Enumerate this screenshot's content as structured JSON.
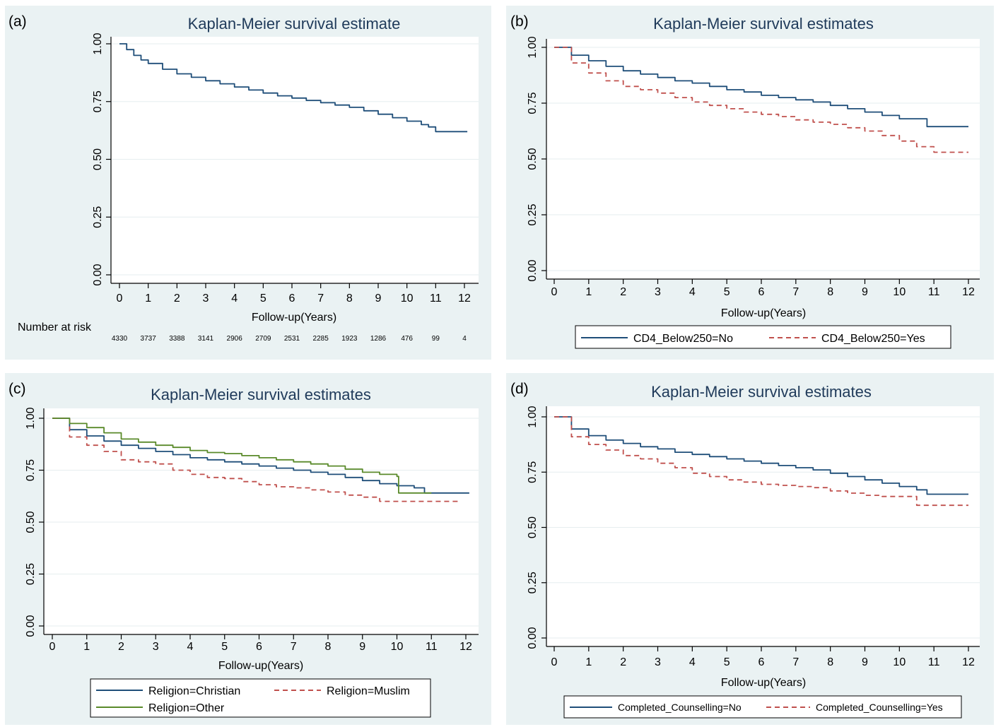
{
  "chart_data": [
    {
      "panel": "(a)",
      "type": "line",
      "title": "Kaplan-Meier survival estimate",
      "xlabel": "Follow-up(Years)",
      "ylabel": "",
      "xlim": [
        0,
        12
      ],
      "ylim": [
        0,
        1
      ],
      "xticks": [
        "0",
        "1",
        "2",
        "3",
        "4",
        "5",
        "6",
        "7",
        "8",
        "9",
        "10",
        "11",
        "12"
      ],
      "yticks": [
        "0.00",
        "0.25",
        "0.50",
        "0.75",
        "1.00"
      ],
      "grid": true,
      "series": [
        {
          "color": "#1f4e79",
          "dash": false,
          "x": [
            0,
            0.25,
            0.5,
            0.75,
            1,
            1.5,
            2,
            2.5,
            3,
            3.5,
            4,
            4.5,
            5,
            5.5,
            6,
            6.5,
            7,
            7.5,
            8,
            8.5,
            9,
            9.5,
            10,
            10.5,
            10.75,
            11,
            11.5,
            12.1
          ],
          "y": [
            1.0,
            0.975,
            0.95,
            0.93,
            0.915,
            0.89,
            0.87,
            0.855,
            0.84,
            0.827,
            0.813,
            0.8,
            0.787,
            0.775,
            0.765,
            0.755,
            0.745,
            0.735,
            0.725,
            0.71,
            0.695,
            0.68,
            0.665,
            0.65,
            0.64,
            0.62,
            0.62,
            0.62
          ]
        }
      ],
      "risk_table": {
        "title": "Number at risk",
        "values": [
          "4330",
          "3737",
          "3388",
          "3141",
          "2906",
          "2709",
          "2531",
          "2285",
          "1923",
          "1286",
          "476",
          "99",
          "4"
        ]
      }
    },
    {
      "panel": "(b)",
      "type": "line",
      "title": "Kaplan-Meier survival estimates",
      "xlabel": "Follow-up(Years)",
      "ylabel": "",
      "xlim": [
        0,
        12
      ],
      "ylim": [
        0,
        1
      ],
      "xticks": [
        "0",
        "1",
        "2",
        "3",
        "4",
        "5",
        "6",
        "7",
        "8",
        "9",
        "10",
        "11",
        "12"
      ],
      "yticks": [
        "0.00",
        "0.25",
        "0.50",
        "0.75",
        "1.00"
      ],
      "grid": true,
      "legend": "bottom",
      "series": [
        {
          "name": "CD4_Below250=No",
          "color": "#1f4e79",
          "dash": false,
          "x": [
            0,
            0.5,
            1,
            1.5,
            2,
            2.5,
            3,
            3.5,
            4,
            4.5,
            5,
            5.5,
            6,
            6.5,
            7,
            7.5,
            8,
            8.5,
            9,
            9.5,
            10,
            10.5,
            10.8,
            10.8,
            11.5,
            12
          ],
          "y": [
            1.0,
            0.965,
            0.94,
            0.915,
            0.895,
            0.88,
            0.865,
            0.85,
            0.84,
            0.825,
            0.81,
            0.8,
            0.785,
            0.775,
            0.765,
            0.755,
            0.74,
            0.725,
            0.71,
            0.695,
            0.68,
            0.68,
            0.68,
            0.645,
            0.645,
            0.645
          ]
        },
        {
          "name": "CD4_Below250=Yes",
          "color": "#c0504d",
          "dash": true,
          "x": [
            0,
            0.5,
            1,
            1.5,
            2,
            2.5,
            3,
            3.5,
            4,
            4.5,
            5,
            5.5,
            6,
            6.5,
            7,
            7.5,
            8,
            8.5,
            9,
            9.5,
            10,
            10.5,
            11,
            11.5,
            12
          ],
          "y": [
            1.0,
            0.93,
            0.885,
            0.85,
            0.825,
            0.81,
            0.795,
            0.775,
            0.755,
            0.74,
            0.725,
            0.71,
            0.7,
            0.69,
            0.675,
            0.665,
            0.655,
            0.64,
            0.625,
            0.605,
            0.58,
            0.555,
            0.53,
            0.53,
            0.53
          ]
        }
      ]
    },
    {
      "panel": "(c)",
      "type": "line",
      "title": "Kaplan-Meier survival estimates",
      "xlabel": "Follow-up(Years)",
      "ylabel": "",
      "xlim": [
        0,
        12
      ],
      "ylim": [
        0,
        1
      ],
      "xticks": [
        "0",
        "1",
        "2",
        "3",
        "4",
        "5",
        "6",
        "7",
        "8",
        "9",
        "10",
        "11",
        "12"
      ],
      "yticks": [
        "0.00",
        "0.25",
        "0.50",
        "0.75",
        "1.00"
      ],
      "grid": true,
      "legend": "bottom",
      "series": [
        {
          "name": "Religion=Christian",
          "color": "#1f4e79",
          "dash": false,
          "x": [
            0,
            0.5,
            1,
            1.5,
            2,
            2.5,
            3,
            3.5,
            4,
            4.5,
            5,
            5.5,
            6,
            6.5,
            7,
            7.5,
            8,
            8.5,
            9,
            9.5,
            10,
            10.5,
            10.8,
            11.5,
            12.1
          ],
          "y": [
            1.0,
            0.945,
            0.915,
            0.89,
            0.87,
            0.855,
            0.84,
            0.825,
            0.81,
            0.8,
            0.79,
            0.78,
            0.77,
            0.76,
            0.75,
            0.74,
            0.73,
            0.715,
            0.7,
            0.685,
            0.675,
            0.665,
            0.64,
            0.64,
            0.64
          ]
        },
        {
          "name": "Religion=Muslim",
          "color": "#c0504d",
          "dash": true,
          "x": [
            0,
            0.5,
            1,
            1.5,
            2,
            2.5,
            3,
            3.5,
            4,
            4.5,
            5,
            5.5,
            6,
            6.5,
            7,
            7.5,
            8,
            8.5,
            9,
            9.5,
            10,
            10.5,
            11,
            11.8
          ],
          "y": [
            1.0,
            0.91,
            0.87,
            0.84,
            0.8,
            0.79,
            0.78,
            0.75,
            0.73,
            0.715,
            0.71,
            0.695,
            0.68,
            0.67,
            0.665,
            0.655,
            0.645,
            0.63,
            0.62,
            0.6,
            0.6,
            0.6,
            0.6,
            0.6
          ]
        },
        {
          "name": "Religion=Other",
          "color": "#5a8a2a",
          "dash": false,
          "x": [
            0,
            0.5,
            1,
            1.5,
            2,
            2.5,
            3,
            3.5,
            4,
            4.5,
            5,
            5.5,
            6,
            6.5,
            7,
            7.5,
            8,
            8.5,
            9,
            9.5,
            10,
            10.05,
            10.8,
            11
          ],
          "y": [
            1.0,
            0.975,
            0.955,
            0.93,
            0.9,
            0.885,
            0.87,
            0.86,
            0.845,
            0.835,
            0.83,
            0.82,
            0.81,
            0.8,
            0.79,
            0.78,
            0.77,
            0.755,
            0.74,
            0.73,
            0.72,
            0.64,
            0.64,
            0.64
          ]
        }
      ]
    },
    {
      "panel": "(d)",
      "type": "line",
      "title": "Kaplan-Meier survival estimates",
      "xlabel": "Follow-up(Years)",
      "ylabel": "",
      "xlim": [
        0,
        12
      ],
      "ylim": [
        0,
        1
      ],
      "xticks": [
        "0",
        "1",
        "2",
        "3",
        "4",
        "5",
        "6",
        "7",
        "8",
        "9",
        "10",
        "11",
        "12"
      ],
      "yticks": [
        "0.00",
        "0.25",
        "0.50",
        "0.75",
        "1.00"
      ],
      "grid": true,
      "legend": "bottom",
      "series": [
        {
          "name": "Completed_Counselling=No",
          "color": "#1f4e79",
          "dash": false,
          "x": [
            0,
            0.5,
            1,
            1.5,
            2,
            2.5,
            3,
            3.5,
            4,
            4.5,
            5,
            5.5,
            6,
            6.5,
            7,
            7.5,
            8,
            8.5,
            9,
            9.5,
            10,
            10.5,
            10.8,
            11.5,
            12
          ],
          "y": [
            1.0,
            0.945,
            0.915,
            0.895,
            0.88,
            0.865,
            0.855,
            0.84,
            0.83,
            0.82,
            0.81,
            0.8,
            0.79,
            0.78,
            0.77,
            0.76,
            0.745,
            0.73,
            0.715,
            0.7,
            0.685,
            0.67,
            0.65,
            0.65,
            0.65
          ]
        },
        {
          "name": "Completed_Counselling=Yes",
          "color": "#c0504d",
          "dash": true,
          "x": [
            0,
            0.5,
            1,
            1.5,
            2,
            2.5,
            3,
            3.5,
            4,
            4.5,
            5,
            5.5,
            6,
            6.5,
            7,
            7.5,
            8,
            8.5,
            9,
            9.5,
            10,
            10.5,
            10.5,
            11,
            12
          ],
          "y": [
            1.0,
            0.91,
            0.875,
            0.85,
            0.825,
            0.81,
            0.79,
            0.77,
            0.745,
            0.73,
            0.715,
            0.705,
            0.695,
            0.69,
            0.685,
            0.68,
            0.665,
            0.655,
            0.645,
            0.64,
            0.64,
            0.64,
            0.6,
            0.6,
            0.6
          ]
        }
      ]
    }
  ]
}
